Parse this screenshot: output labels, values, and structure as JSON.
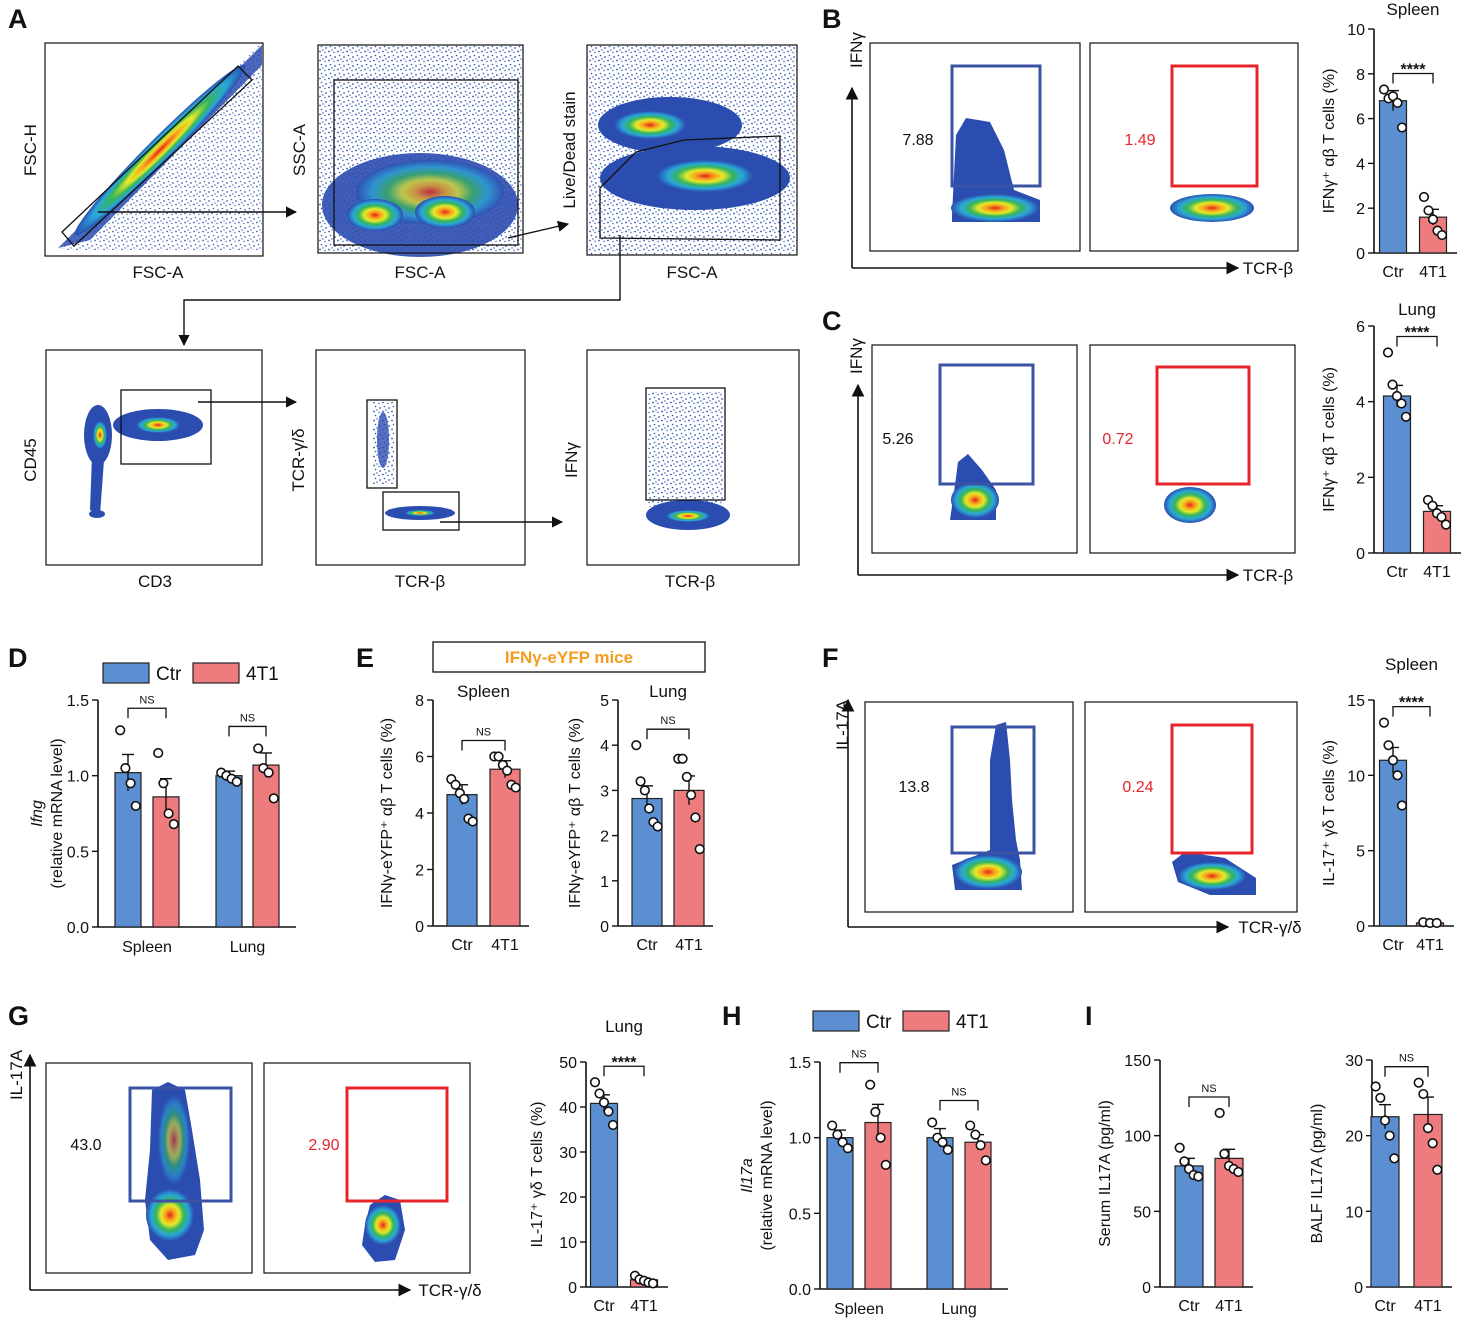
{
  "panel_letters": [
    "A",
    "B",
    "C",
    "D",
    "E",
    "F",
    "G",
    "H",
    "I"
  ],
  "colors": {
    "ctr": "#5b8fd2",
    "t41": "#ee7b7d",
    "blue_gate": "#3a53a4",
    "red_gate": "#e8242b",
    "orange": "#f39c1e"
  },
  "gating": {
    "plots": [
      {
        "x_label": "FSC-A",
        "y_label": "FSC-H"
      },
      {
        "x_label": "FSC-A",
        "y_label": "SSC-A"
      },
      {
        "x_label": "FSC-A",
        "y_label": "Live/Dead stain"
      },
      {
        "x_label": "CD3",
        "y_label": "CD45"
      },
      {
        "x_label": "TCR-β",
        "y_label": "TCR-γ/δ"
      },
      {
        "x_label": "TCR-β",
        "y_label": "IFNγ"
      }
    ]
  },
  "flow": {
    "B": {
      "y_label": "IFNγ",
      "x_label": "TCR-β",
      "ctr_pct": "7.88",
      "t41_pct": "1.49"
    },
    "C": {
      "y_label": "IFNγ",
      "x_label": "TCR-β",
      "ctr_pct": "5.26",
      "t41_pct": "0.72"
    },
    "F": {
      "y_label": "IL-17A",
      "x_label": "TCR-γ/δ",
      "ctr_pct": "13.8",
      "t41_pct": "0.24"
    },
    "G": {
      "y_label": "IL-17A",
      "x_label": "TCR-γ/δ",
      "ctr_pct": "43.0",
      "t41_pct": "2.90"
    }
  },
  "legend": {
    "ctr": "Ctr",
    "t41": "4T1"
  },
  "banner": "IFNγ-eYFP mice",
  "chart_data": [
    {
      "id": "B",
      "type": "bar",
      "title": "Spleen",
      "ylabel": "IFNγ+ αβ T cells (%)",
      "categories": [
        "Ctr",
        "4T1"
      ],
      "values": [
        6.8,
        1.6
      ],
      "sem": [
        0.45,
        0.35
      ],
      "points": [
        [
          7.3,
          6.9,
          7.0,
          6.7,
          5.6
        ],
        [
          2.5,
          1.9,
          1.5,
          1.0,
          0.8
        ]
      ],
      "ylim": [
        0,
        10
      ],
      "yticks": [
        0,
        2,
        4,
        6,
        8,
        10
      ],
      "sig": "****"
    },
    {
      "id": "C",
      "type": "bar",
      "title": "Lung",
      "ylabel": "IFNγ+ αβ T cells (%)",
      "categories": [
        "Ctr",
        "4T1"
      ],
      "values": [
        4.15,
        1.1
      ],
      "sem": [
        0.28,
        0.15
      ],
      "points": [
        [
          5.3,
          4.45,
          4.15,
          3.95,
          3.6
        ],
        [
          1.4,
          1.25,
          1.05,
          0.95,
          0.75
        ]
      ],
      "ylim": [
        0,
        6
      ],
      "yticks": [
        0,
        2,
        4,
        6
      ],
      "sig": "****"
    },
    {
      "id": "D",
      "type": "bar",
      "ylabel": "Ifng (relative mRNA level)",
      "categories": [
        "Spleen",
        "Lung"
      ],
      "series": [
        {
          "name": "Ctr",
          "values": [
            1.02,
            1.0
          ],
          "sem": [
            0.12,
            0.03
          ],
          "points": [
            [
              1.3,
              1.05,
              0.95,
              0.8
            ],
            [
              1.02,
              1.0,
              0.98,
              0.96
            ]
          ]
        },
        {
          "name": "4T1",
          "values": [
            0.86,
            1.07
          ],
          "sem": [
            0.12,
            0.08
          ],
          "points": [
            [
              1.15,
              0.95,
              0.75,
              0.68
            ],
            [
              1.18,
              1.05,
              1.02,
              0.85
            ]
          ]
        }
      ],
      "ylim": [
        0,
        1.5
      ],
      "yticks": [
        0.0,
        0.5,
        1.0,
        1.5
      ],
      "sig": [
        "NS",
        "NS"
      ]
    },
    {
      "id": "E1",
      "type": "bar",
      "title": "Spleen",
      "ylabel": "IFNγ-eYFP+ αβ T cells (%)",
      "categories": [
        "Ctr",
        "4T1"
      ],
      "values": [
        4.65,
        5.55
      ],
      "sem": [
        0.35,
        0.3
      ],
      "points": [
        [
          5.2,
          5.0,
          4.7,
          4.5,
          3.8,
          3.7
        ],
        [
          6.0,
          6.0,
          5.7,
          5.5,
          5.0,
          4.9
        ]
      ],
      "ylim": [
        0,
        8
      ],
      "yticks": [
        0,
        2,
        4,
        6,
        8
      ],
      "sig": "NS"
    },
    {
      "id": "E2",
      "type": "bar",
      "title": "Lung",
      "ylabel": "IFNγ-eYFP+ αβ T cells (%)",
      "categories": [
        "Ctr",
        "4T1"
      ],
      "values": [
        2.82,
        3.0
      ],
      "sem": [
        0.28,
        0.32
      ],
      "points": [
        [
          4.0,
          3.2,
          3.0,
          2.6,
          2.3,
          2.2
        ],
        [
          3.7,
          3.7,
          3.3,
          2.9,
          2.4,
          1.7
        ]
      ],
      "ylim": [
        0,
        5
      ],
      "yticks": [
        0,
        1,
        2,
        3,
        4,
        5
      ],
      "sig": "NS"
    },
    {
      "id": "F",
      "type": "bar",
      "title": "Spleen",
      "ylabel": "IL-17+ γδ T cells (%)",
      "categories": [
        "Ctr",
        "4T1"
      ],
      "values": [
        11.0,
        0.2
      ],
      "sem": [
        0.85,
        0.05
      ],
      "points": [
        [
          13.5,
          12.0,
          11.0,
          10.0,
          8.0
        ],
        [
          0.25,
          0.2,
          0.2
        ]
      ],
      "ylim": [
        0,
        15
      ],
      "yticks": [
        0,
        5,
        10,
        15
      ],
      "sig": "****"
    },
    {
      "id": "G",
      "type": "bar",
      "title": "Lung",
      "ylabel": "IL-17+ γδ T cells (%)",
      "categories": [
        "Ctr",
        "4T1"
      ],
      "values": [
        40.8,
        1.6
      ],
      "sem": [
        1.9,
        0.4
      ],
      "points": [
        [
          45.5,
          43.0,
          41.0,
          39.0,
          36.0
        ],
        [
          2.5,
          1.7,
          1.4,
          1.0,
          0.8
        ]
      ],
      "ylim": [
        0,
        50
      ],
      "yticks": [
        0,
        10,
        20,
        30,
        40,
        50
      ],
      "sig": "****"
    },
    {
      "id": "H",
      "type": "bar",
      "ylabel": "Il17a (relative mRNA level)",
      "categories": [
        "Spleen",
        "Lung"
      ],
      "series": [
        {
          "name": "Ctr",
          "values": [
            1.0,
            1.0
          ],
          "sem": [
            0.05,
            0.06
          ],
          "points": [
            [
              1.08,
              1.02,
              0.97,
              0.93
            ],
            [
              1.1,
              1.0,
              0.97,
              0.92
            ]
          ]
        },
        {
          "name": "4T1",
          "values": [
            1.1,
            0.97
          ],
          "sem": [
            0.12,
            0.05
          ],
          "points": [
            [
              1.35,
              1.17,
              1.0,
              0.82
            ],
            [
              1.08,
              1.02,
              0.95,
              0.85
            ]
          ]
        }
      ],
      "ylim": [
        0,
        1.5
      ],
      "yticks": [
        0.0,
        0.5,
        1.0,
        1.5
      ],
      "sig": [
        "NS",
        "NS"
      ]
    },
    {
      "id": "I1",
      "type": "bar",
      "ylabel": "Serum IL17A (pg/ml)",
      "categories": [
        "Ctr",
        "4T1"
      ],
      "values": [
        80,
        85
      ],
      "sem": [
        5,
        6
      ],
      "points": [
        [
          92,
          83,
          78,
          74,
          73
        ],
        [
          115,
          88,
          80,
          78,
          76
        ]
      ],
      "ylim": [
        0,
        150
      ],
      "yticks": [
        0,
        50,
        100,
        150
      ],
      "sig": "NS"
    },
    {
      "id": "I2",
      "type": "bar",
      "ylabel": "BALF IL17A (pg/ml)",
      "categories": [
        "Ctr",
        "4T1"
      ],
      "values": [
        22.5,
        22.8
      ],
      "sem": [
        1.6,
        2.3
      ],
      "points": [
        [
          26.5,
          25.0,
          22.0,
          20.0,
          17.0
        ],
        [
          27.0,
          25.5,
          21.0,
          19.0,
          15.5
        ]
      ],
      "ylim": [
        0,
        30
      ],
      "yticks": [
        0,
        10,
        20,
        30
      ],
      "sig": "NS"
    }
  ]
}
